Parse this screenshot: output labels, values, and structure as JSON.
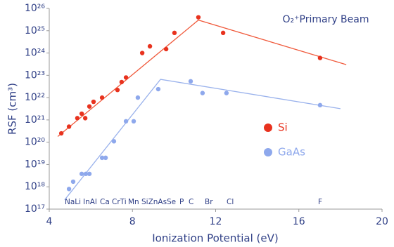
{
  "chart_data": {
    "type": "scatter",
    "annotation": "O₂⁺Primary Beam",
    "x_label": "Ionization Potential (eV)",
    "y_label": "RSF (cm³)",
    "y_scale": "log",
    "legend": "right",
    "xlim": [
      4,
      20
    ],
    "xticks": [
      4,
      8,
      12,
      16,
      20
    ],
    "ylim": [
      1e+17,
      1e+26
    ],
    "yticks": [
      {
        "value": 1e+17,
        "label": "10¹⁷"
      },
      {
        "value": 1e+18,
        "label": "10¹⁸"
      },
      {
        "value": 1e+19,
        "label": "10¹⁹"
      },
      {
        "value": 1e+20,
        "label": "10²⁰"
      },
      {
        "value": 1e+21,
        "label": "10²¹"
      },
      {
        "value": 1e+22,
        "label": "10²²"
      },
      {
        "value": 1e+23,
        "label": "10²³"
      },
      {
        "value": 1e+24,
        "label": "10²⁴"
      },
      {
        "value": 1e+25,
        "label": "10²⁵"
      },
      {
        "value": 1e+26,
        "label": "10²⁶"
      }
    ],
    "element_labels": [
      "NaLi",
      "InAl",
      "Ca",
      "CrTi",
      "Mn",
      "SiZnAs",
      "Se",
      "P",
      "C",
      "Br",
      "Cl",
      "F"
    ],
    "series": [
      {
        "name": "Si",
        "color": "#e8321e",
        "x": [
          4.58,
          4.95,
          5.35,
          5.56,
          5.73,
          5.93,
          6.13,
          6.54,
          7.28,
          7.48,
          7.69,
          8.47,
          8.84,
          9.62,
          10.02,
          11.17,
          12.36,
          17.02
        ],
        "values": [
          2.5e+20,
          5e+20,
          1.2e+21,
          1.9e+21,
          1.2e+21,
          4e+21,
          6.5e+21,
          1e+22,
          2.2e+22,
          5e+22,
          8e+22,
          1e+24,
          2e+24,
          1.5e+24,
          8e+24,
          4e+25,
          8e+24,
          6e+23
        ]
      },
      {
        "name": "GaAs",
        "color": "#8ea8ec",
        "x": [
          4.95,
          5.15,
          5.56,
          5.76,
          5.93,
          6.54,
          6.71,
          7.11,
          7.69,
          8.06,
          8.26,
          9.24,
          10.8,
          11.37,
          12.52,
          17.02
        ],
        "values": [
          8e+17,
          1.7e+18,
          3.8e+18,
          3.8e+18,
          3.8e+18,
          2e+19,
          2e+19,
          1.1e+20,
          8.7e+20,
          8.7e+20,
          1e+22,
          2.4e+22,
          5.4e+22,
          1.6e+22,
          1.6e+22,
          4.6e+21
        ]
      }
    ],
    "trend_lines": [
      {
        "color": "#f05a3c",
        "x": [
          4.41,
          11.17,
          18.28
        ],
        "values": [
          1.8e+20,
          3e+25,
          3e+23
        ]
      },
      {
        "color": "#9ab2ec",
        "x": [
          4.74,
          9.35,
          18.0
        ],
        "values": [
          2.6e+17,
          6.6e+22,
          3.2e+21
        ]
      }
    ]
  }
}
